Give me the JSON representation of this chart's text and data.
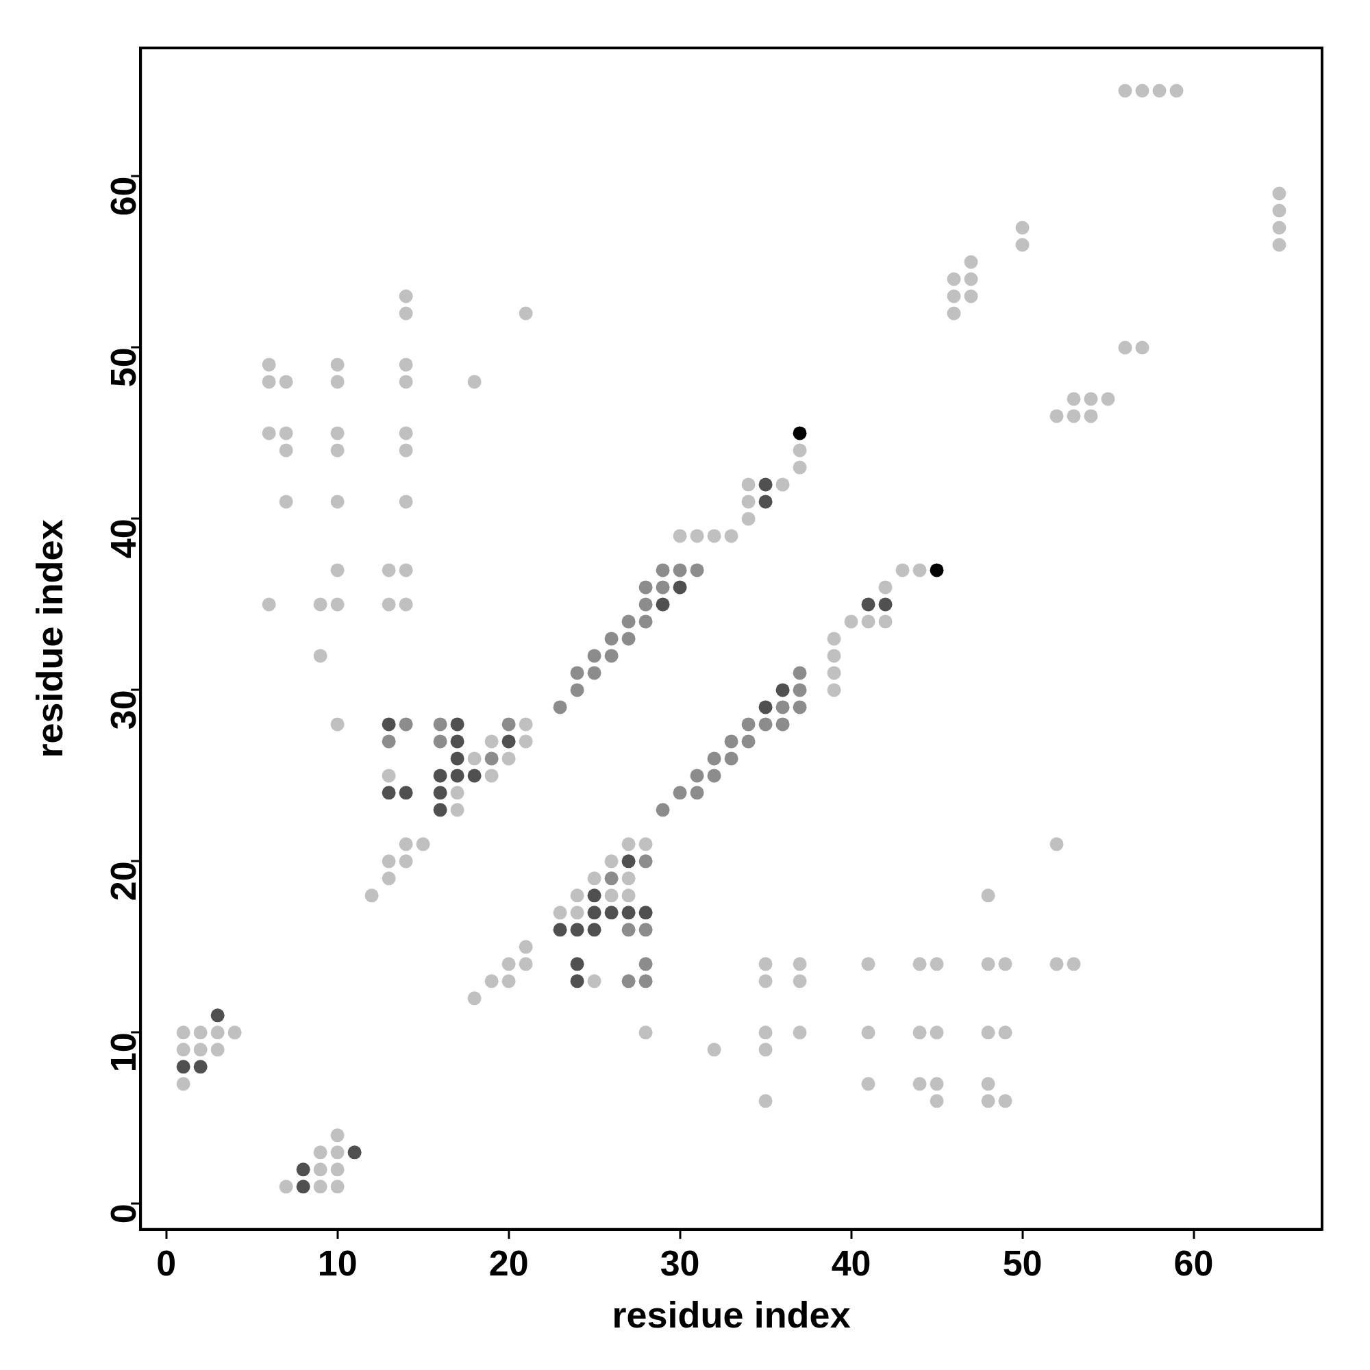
{
  "chart_data": {
    "type": "scatter",
    "xlabel": "residue index",
    "ylabel": "residue index",
    "xlim": [
      -1.5,
      67.5
    ],
    "ylim": [
      -1.5,
      67.5
    ],
    "xticks": [
      0,
      10,
      20,
      30,
      40,
      50,
      60
    ],
    "yticks": [
      0,
      10,
      20,
      30,
      40,
      50,
      60
    ],
    "grid": false,
    "legend": false,
    "marker": "circle",
    "series": [
      {
        "color": "#c0c0c0",
        "x": [
          1,
          2,
          3,
          4,
          1,
          2,
          3,
          1,
          10,
          9,
          10,
          9,
          10,
          7,
          9,
          10,
          6,
          6,
          6,
          6,
          7,
          7,
          7,
          7,
          9,
          9,
          10,
          10,
          10,
          10,
          10,
          10,
          10,
          10,
          13,
          13,
          14,
          14,
          14,
          14,
          14,
          14,
          14,
          14,
          14,
          18,
          21,
          21,
          21,
          19,
          20,
          18,
          17,
          17,
          19,
          13,
          12,
          13,
          13,
          14,
          14,
          15,
          30,
          31,
          32,
          33,
          34,
          34,
          34,
          36,
          37,
          37,
          43,
          44,
          40,
          41,
          42,
          42,
          39,
          39,
          39,
          39,
          27,
          28,
          26,
          27,
          25,
          27,
          24,
          26,
          23,
          24,
          25,
          28,
          21,
          20,
          21,
          19,
          20,
          18,
          52,
          48,
          35,
          37,
          41,
          44,
          45,
          48,
          49,
          52,
          53,
          35,
          37,
          35,
          37,
          41,
          44,
          45,
          48,
          49,
          32,
          35,
          41,
          44,
          45,
          48,
          35,
          45,
          48,
          49,
          56,
          57,
          58,
          59,
          65,
          65,
          65,
          65,
          50,
          50,
          47,
          46,
          47,
          46,
          47,
          46,
          56,
          57,
          53,
          54,
          55,
          52,
          53,
          54
        ],
        "values": [
          10,
          10,
          10,
          10,
          9,
          9,
          9,
          7,
          4,
          3,
          3,
          2,
          2,
          1,
          1,
          1,
          49,
          48,
          45,
          35,
          48,
          45,
          44,
          41,
          35,
          32,
          49,
          48,
          45,
          44,
          41,
          37,
          35,
          28,
          37,
          35,
          53,
          52,
          49,
          48,
          45,
          44,
          41,
          37,
          35,
          48,
          52,
          28,
          27,
          27,
          26,
          26,
          24,
          23,
          25,
          25,
          18,
          19,
          20,
          20,
          21,
          21,
          39,
          39,
          39,
          39,
          40,
          41,
          42,
          42,
          43,
          44,
          37,
          37,
          34,
          34,
          34,
          36,
          33,
          32,
          31,
          30,
          21,
          21,
          20,
          19,
          19,
          18,
          18,
          18,
          17,
          17,
          13,
          10,
          15,
          14,
          14,
          13,
          13,
          12,
          21,
          18,
          14,
          14,
          14,
          14,
          14,
          14,
          14,
          14,
          14,
          13,
          13,
          10,
          10,
          10,
          10,
          10,
          10,
          10,
          9,
          9,
          7,
          7,
          7,
          7,
          6,
          6,
          6,
          6,
          65,
          65,
          65,
          65,
          59,
          58,
          57,
          56,
          57,
          56,
          55,
          54,
          54,
          53,
          53,
          52,
          50,
          50,
          47,
          47,
          47,
          46,
          46,
          46
        ]
      },
      {
        "color": "#8c8c8c",
        "x": [
          14,
          16,
          20,
          13,
          16,
          19,
          23,
          24,
          24,
          25,
          25,
          26,
          26,
          27,
          27,
          28,
          28,
          28,
          29,
          29,
          30,
          31,
          37,
          37,
          36,
          37,
          34,
          35,
          36,
          33,
          34,
          32,
          33,
          31,
          32,
          30,
          31,
          29,
          28,
          26,
          27,
          28,
          28,
          27,
          28
        ],
        "values": [
          28,
          28,
          28,
          27,
          27,
          26,
          29,
          30,
          31,
          31,
          32,
          32,
          33,
          33,
          34,
          34,
          35,
          36,
          36,
          37,
          37,
          37,
          31,
          30,
          29,
          29,
          28,
          28,
          28,
          27,
          27,
          26,
          26,
          25,
          25,
          24,
          24,
          23,
          20,
          19,
          16,
          16,
          14,
          13,
          13
        ]
      },
      {
        "color": "#505050",
        "x": [
          3,
          1,
          2,
          11,
          8,
          8,
          13,
          17,
          17,
          20,
          17,
          16,
          17,
          18,
          13,
          14,
          16,
          16,
          29,
          30,
          35,
          35,
          41,
          42,
          36,
          35,
          27,
          25,
          25,
          26,
          27,
          28,
          23,
          24,
          25,
          24,
          24
        ],
        "values": [
          11,
          8,
          8,
          3,
          2,
          1,
          28,
          28,
          27,
          27,
          26,
          25,
          25,
          25,
          24,
          24,
          24,
          23,
          35,
          36,
          41,
          42,
          35,
          35,
          30,
          29,
          20,
          18,
          17,
          17,
          17,
          17,
          16,
          16,
          16,
          14,
          13
        ]
      },
      {
        "color": "#000000",
        "x": [
          37,
          45
        ],
        "values": [
          45,
          37
        ]
      }
    ]
  }
}
